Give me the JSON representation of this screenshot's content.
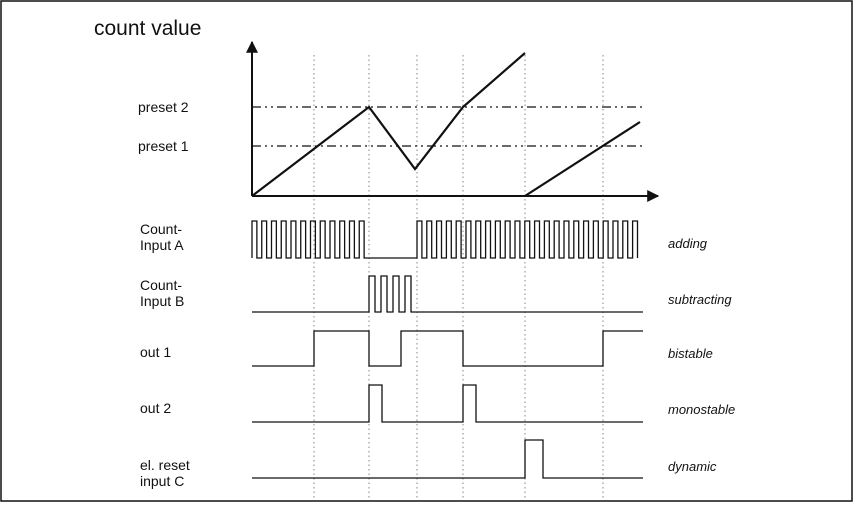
{
  "diagram": {
    "title": "count value",
    "presets": [
      {
        "label": "preset 2"
      },
      {
        "label": "preset 1"
      }
    ],
    "signals": [
      {
        "key": "count_a",
        "label_lines": [
          "Count-",
          "Input A"
        ],
        "mode": "adding"
      },
      {
        "key": "count_b",
        "label_lines": [
          "Count-",
          "Input B"
        ],
        "mode": "subtracting"
      },
      {
        "key": "out1",
        "label_lines": [
          "out 1"
        ],
        "mode": "bistable"
      },
      {
        "key": "out2",
        "label_lines": [
          "out 2"
        ],
        "mode": "monostable"
      },
      {
        "key": "reset_c",
        "label_lines": [
          "el. reset",
          "input C"
        ],
        "mode": "dynamic"
      }
    ]
  }
}
